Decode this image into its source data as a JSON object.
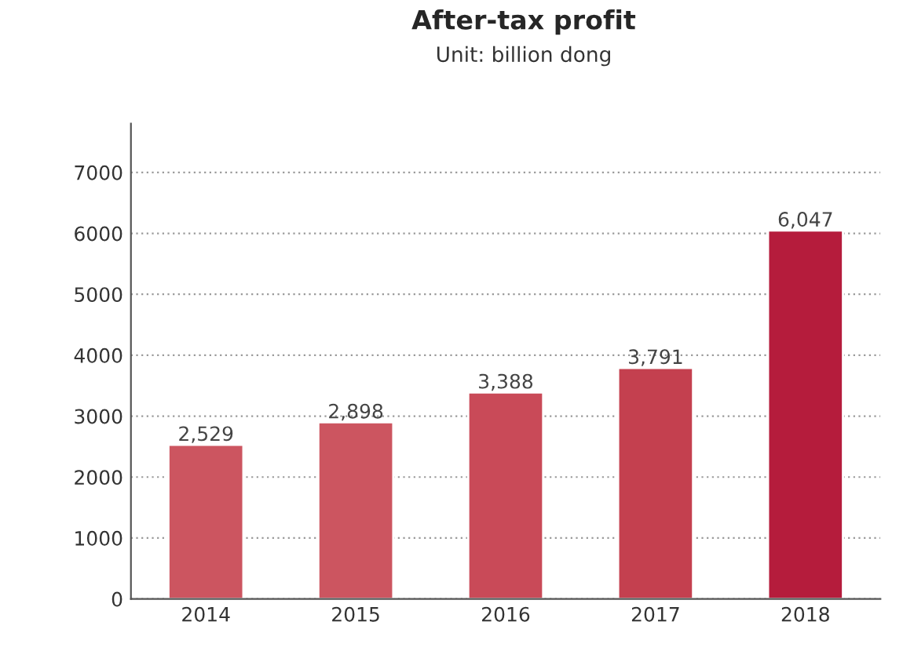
{
  "chart_data": {
    "type": "bar",
    "title": "After-tax profit",
    "subtitle": "Unit: billion dong",
    "categories": [
      "2014",
      "2015",
      "2016",
      "2017",
      "2018"
    ],
    "values": [
      2529,
      2898,
      3388,
      3791,
      6047
    ],
    "value_labels": [
      "2,529",
      "2,898",
      "3,388",
      "3,791",
      "6,047"
    ],
    "colors": [
      "#cc5560",
      "#cc5560",
      "#c94a58",
      "#c4404f",
      "#b51c3c"
    ],
    "ylim": [
      0,
      7800
    ],
    "yticks": [
      0,
      1000,
      2000,
      3000,
      4000,
      5000,
      6000,
      7000
    ],
    "grid": "y",
    "legend": false
  }
}
